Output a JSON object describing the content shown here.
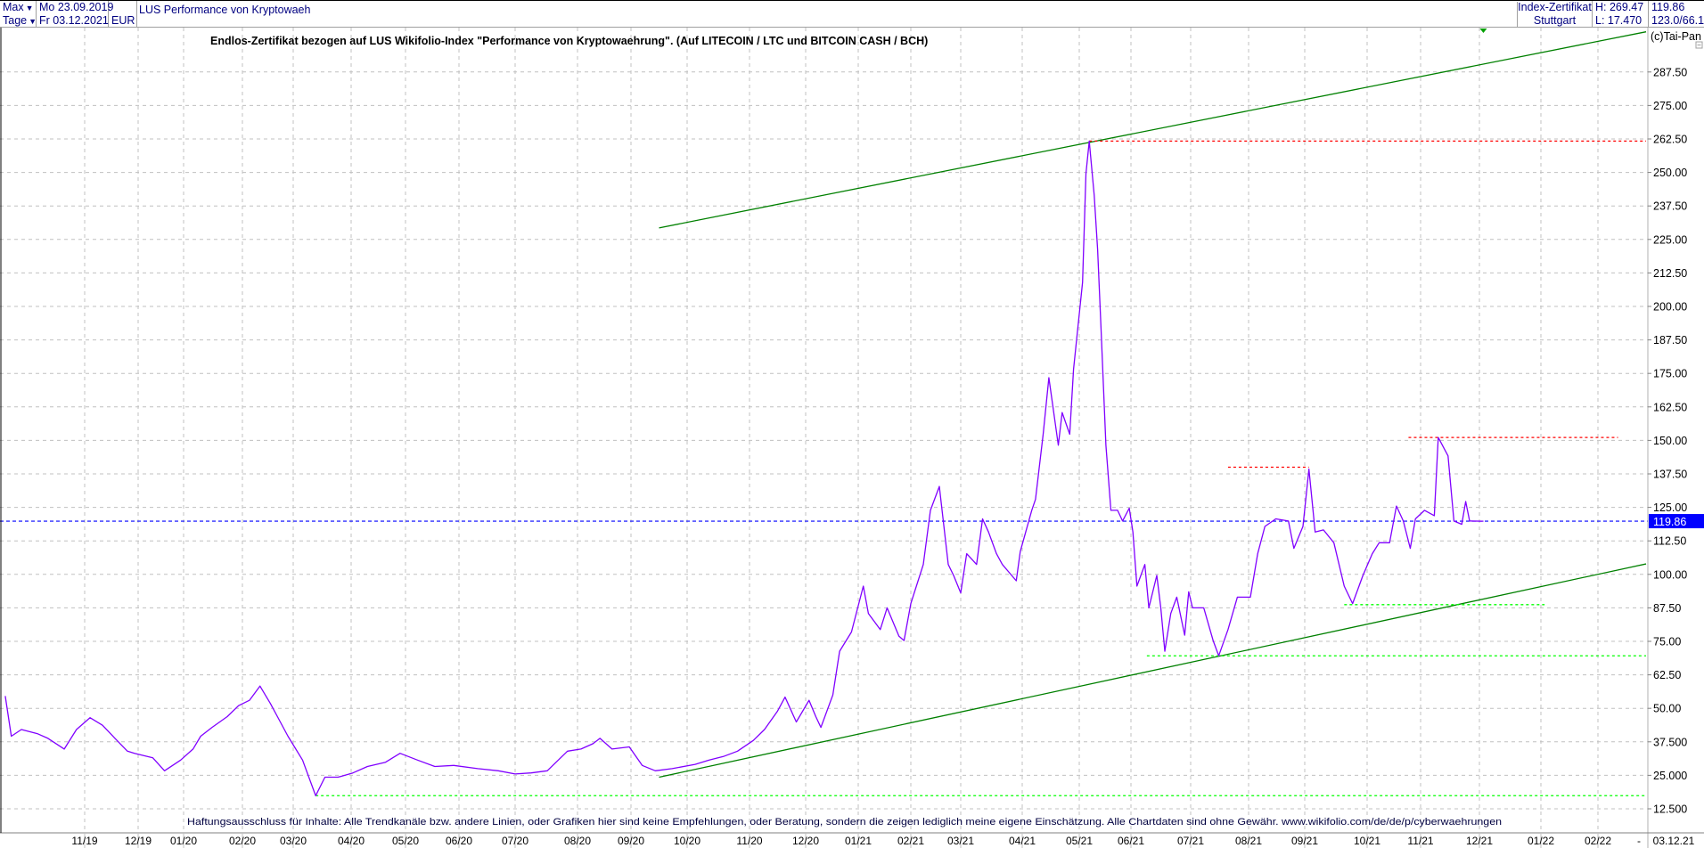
{
  "header": {
    "range_select": "Max",
    "interval_select": "Tage",
    "start_date": "Mo 23.09.2019",
    "end_date": "Fr 03.12.2021",
    "currency": "EUR",
    "instrument_name": "LUS Performance von Kryptowaeh",
    "instrument_type": "Index-Zertifikat",
    "exchange": "Stuttgart",
    "high": "H: 269.47",
    "low": "L: 17.470",
    "last_price": "119.86",
    "extra_value": "123.0/66.1"
  },
  "copyright": "(c)Tai-Pan",
  "colors": {
    "price_line": "#8000ff",
    "trend_channel": "#008000",
    "resistance": "#ff0000",
    "support": "#00ff00",
    "last_price_line": "#0000ff",
    "grid": "#c0c0c0"
  },
  "chart_data": {
    "type": "line",
    "title": "Endlos-Zertifikat bezogen auf LUS Wikifolio-Index \"Performance von Kryptowaehrung\". (Auf LITECOIN / LTC und BITCOIN CASH / BCH)",
    "footnote": "Haftungsausschluss für Inhalte: Alle Trendkanäle bzw. andere Linien, oder Grafiken hier sind keine Empfehlungen, oder Beratung, sondern die zeigen lediglich meine eigene Einschätzung. Alle Chartdaten sind ohne Gewähr.  www.wikifolio.com/de/de/p/cyberwaehrungen",
    "ylim": [
      6,
      303
    ],
    "y_axis_side": "right",
    "grid": true,
    "y_ticks": [
      "12.500",
      "25.000",
      "37.500",
      "50.00",
      "62.50",
      "75.00",
      "87.50",
      "100.00",
      "112.50",
      "125.00",
      "137.50",
      "150.00",
      "162.50",
      "175.00",
      "187.50",
      "200.00",
      "212.50",
      "225.00",
      "237.50",
      "250.00",
      "262.50",
      "275.00",
      "287.50"
    ],
    "y_tick_values": [
      12.5,
      25,
      37.5,
      50,
      62.5,
      75,
      87.5,
      100,
      112.5,
      125,
      137.5,
      150,
      162.5,
      175,
      187.5,
      200,
      212.5,
      225,
      237.5,
      250,
      262.5,
      275,
      287.5
    ],
    "x_ticks": [
      "11/19",
      "12/19",
      "01/20",
      "02/20",
      "03/20",
      "04/20",
      "05/20",
      "06/20",
      "07/20",
      "08/20",
      "09/20",
      "10/20",
      "11/20",
      "12/20",
      "01/21",
      "02/21",
      "03/21",
      "04/21",
      "05/21",
      "06/21",
      "07/21",
      "08/21",
      "09/21",
      "10/21",
      "11/21",
      "12/21",
      "01/22",
      "02/22"
    ],
    "x_tick_dates": [
      "2019-11-01",
      "2019-12-01",
      "2020-01-01",
      "2020-02-01",
      "2020-03-01",
      "2020-04-01",
      "2020-05-01",
      "2020-06-01",
      "2020-07-01",
      "2020-08-01",
      "2020-09-01",
      "2020-10-01",
      "2020-11-01",
      "2020-12-01",
      "2021-01-01",
      "2021-02-01",
      "2021-03-01",
      "2021-04-01",
      "2021-05-01",
      "2021-06-01",
      "2021-07-01",
      "2021-08-01",
      "2021-09-01",
      "2021-10-01",
      "2021-11-01",
      "2021-12-01",
      "2022-01-01",
      "2022-02-01"
    ],
    "x_axis_separator": "-",
    "x_axis_current_date": "03.12.21",
    "last_value": 119.86,
    "last_value_label": "119.86",
    "series": [
      {
        "points": [
          [
            "2019-09-23",
            54.6
          ],
          [
            "2019-09-26",
            39.6
          ],
          [
            "2019-10-01",
            42.1
          ],
          [
            "2019-10-09",
            40.5
          ],
          [
            "2019-10-14",
            38.8
          ],
          [
            "2019-10-22",
            34.8
          ],
          [
            "2019-10-28",
            42.1
          ],
          [
            "2019-11-04",
            46.5
          ],
          [
            "2019-11-11",
            43.7
          ],
          [
            "2019-11-18",
            38.8
          ],
          [
            "2019-11-25",
            34.0
          ],
          [
            "2019-11-29",
            33.2
          ],
          [
            "2019-12-11",
            31.5
          ],
          [
            "2019-12-19",
            26.7
          ],
          [
            "2019-12-30",
            30.7
          ],
          [
            "2020-01-06",
            34.8
          ],
          [
            "2020-01-10",
            39.6
          ],
          [
            "2020-01-16",
            42.9
          ],
          [
            "2020-01-24",
            46.9
          ],
          [
            "2020-01-30",
            51.0
          ],
          [
            "2020-02-05",
            53.0
          ],
          [
            "2020-02-11",
            58.3
          ],
          [
            "2020-02-17",
            51.8
          ],
          [
            "2020-02-21",
            46.9
          ],
          [
            "2020-02-27",
            39.6
          ],
          [
            "2020-03-06",
            30.7
          ],
          [
            "2020-03-13",
            17.4
          ],
          [
            "2020-03-18",
            24.3
          ],
          [
            "2020-03-25",
            24.3
          ],
          [
            "2020-04-02",
            25.9
          ],
          [
            "2020-04-10",
            28.3
          ],
          [
            "2020-04-20",
            29.9
          ],
          [
            "2020-04-28",
            33.2
          ],
          [
            "2020-05-08",
            30.7
          ],
          [
            "2020-05-18",
            28.3
          ],
          [
            "2020-05-29",
            28.7
          ],
          [
            "2020-06-11",
            27.5
          ],
          [
            "2020-06-22",
            26.7
          ],
          [
            "2020-07-01",
            25.5
          ],
          [
            "2020-07-09",
            25.9
          ],
          [
            "2020-07-17",
            26.7
          ],
          [
            "2020-07-27",
            34.0
          ],
          [
            "2020-08-03",
            34.8
          ],
          [
            "2020-08-10",
            36.8
          ],
          [
            "2020-08-14",
            38.8
          ],
          [
            "2020-08-21",
            34.8
          ],
          [
            "2020-08-31",
            35.6
          ],
          [
            "2020-09-07",
            28.7
          ],
          [
            "2020-09-14",
            26.7
          ],
          [
            "2020-09-23",
            27.5
          ],
          [
            "2020-10-05",
            29.1
          ],
          [
            "2020-10-12",
            30.7
          ],
          [
            "2020-10-19",
            32.0
          ],
          [
            "2020-10-26",
            34.0
          ],
          [
            "2020-11-03",
            38.0
          ],
          [
            "2020-11-09",
            42.1
          ],
          [
            "2020-11-16",
            49.0
          ],
          [
            "2020-11-20",
            54.2
          ],
          [
            "2020-11-26",
            44.9
          ],
          [
            "2020-12-03",
            53.0
          ],
          [
            "2020-12-07",
            46.9
          ],
          [
            "2020-12-10",
            42.9
          ],
          [
            "2020-12-17",
            55.0
          ],
          [
            "2020-12-21",
            71.3
          ],
          [
            "2020-12-28",
            78.5
          ],
          [
            "2021-01-04",
            95.6
          ],
          [
            "2021-01-07",
            85.4
          ],
          [
            "2021-01-14",
            79.4
          ],
          [
            "2021-01-18",
            87.5
          ],
          [
            "2021-01-25",
            76.9
          ],
          [
            "2021-01-28",
            75.3
          ],
          [
            "2021-02-01",
            89.1
          ],
          [
            "2021-02-08",
            103.7
          ],
          [
            "2021-02-12",
            123.9
          ],
          [
            "2021-02-17",
            132.8
          ],
          [
            "2021-02-22",
            103.7
          ],
          [
            "2021-02-25",
            99.6
          ],
          [
            "2021-03-01",
            93.1
          ],
          [
            "2021-03-04",
            107.7
          ],
          [
            "2021-03-09",
            103.7
          ],
          [
            "2021-03-12",
            120.7
          ],
          [
            "2021-03-15",
            115.8
          ],
          [
            "2021-03-19",
            107.7
          ],
          [
            "2021-03-22",
            103.7
          ],
          [
            "2021-03-29",
            97.6
          ],
          [
            "2021-03-31",
            108.5
          ],
          [
            "2021-04-06",
            123.9
          ],
          [
            "2021-04-08",
            128.0
          ],
          [
            "2021-04-12",
            152.3
          ],
          [
            "2021-04-15",
            173.4
          ],
          [
            "2021-04-20",
            148.2
          ],
          [
            "2021-04-22",
            160.4
          ],
          [
            "2021-04-26",
            152.3
          ],
          [
            "2021-04-28",
            176.6
          ],
          [
            "2021-05-03",
            209.0
          ],
          [
            "2021-05-05",
            249.5
          ],
          [
            "2021-05-07",
            261.7
          ],
          [
            "2021-05-10",
            241.4
          ],
          [
            "2021-05-12",
            221.2
          ],
          [
            "2021-05-14",
            192.8
          ],
          [
            "2021-05-17",
            148.2
          ],
          [
            "2021-05-20",
            123.9
          ],
          [
            "2021-05-24",
            123.9
          ],
          [
            "2021-05-27",
            119.9
          ],
          [
            "2021-05-31",
            124.7
          ],
          [
            "2021-06-02",
            115.8
          ],
          [
            "2021-06-04",
            95.6
          ],
          [
            "2021-06-08",
            103.7
          ],
          [
            "2021-06-10",
            87.5
          ],
          [
            "2021-06-14",
            99.6
          ],
          [
            "2021-06-16",
            87.5
          ],
          [
            "2021-06-18",
            71.3
          ],
          [
            "2021-06-21",
            85.4
          ],
          [
            "2021-06-24",
            91.5
          ],
          [
            "2021-06-28",
            77.3
          ],
          [
            "2021-06-30",
            93.5
          ],
          [
            "2021-07-02",
            87.5
          ],
          [
            "2021-07-08",
            87.5
          ],
          [
            "2021-07-13",
            75.3
          ],
          [
            "2021-07-16",
            69.6
          ],
          [
            "2021-07-21",
            79.4
          ],
          [
            "2021-07-26",
            91.5
          ],
          [
            "2021-08-02",
            91.5
          ],
          [
            "2021-08-06",
            107.7
          ],
          [
            "2021-08-10",
            117.9
          ],
          [
            "2021-08-16",
            120.7
          ],
          [
            "2021-08-23",
            119.9
          ],
          [
            "2021-08-26",
            109.7
          ],
          [
            "2021-08-31",
            117.9
          ],
          [
            "2021-09-03",
            139.3
          ],
          [
            "2021-09-06",
            115.8
          ],
          [
            "2021-09-10",
            116.6
          ],
          [
            "2021-09-15",
            111.8
          ],
          [
            "2021-09-20",
            95.6
          ],
          [
            "2021-09-24",
            89.1
          ],
          [
            "2021-09-29",
            99.6
          ],
          [
            "2021-10-04",
            107.7
          ],
          [
            "2021-10-08",
            111.8
          ],
          [
            "2021-10-14",
            111.8
          ],
          [
            "2021-10-18",
            125.5
          ],
          [
            "2021-10-22",
            119.9
          ],
          [
            "2021-10-26",
            109.7
          ],
          [
            "2021-10-29",
            120.7
          ],
          [
            "2021-11-03",
            123.9
          ],
          [
            "2021-11-08",
            121.9
          ],
          [
            "2021-11-10",
            151.1
          ],
          [
            "2021-11-15",
            144.2
          ],
          [
            "2021-11-18",
            119.9
          ],
          [
            "2021-11-22",
            118.7
          ],
          [
            "2021-11-24",
            127.2
          ],
          [
            "2021-11-26",
            119.9
          ],
          [
            "2021-12-03",
            119.86
          ]
        ]
      }
    ],
    "trendlines": [
      {
        "kind": "channel-upper",
        "from": [
          "2020-09-16",
          229.3
        ],
        "to": [
          "2022-02-25",
          302.5
        ]
      },
      {
        "kind": "channel-lower",
        "from": [
          "2020-09-16",
          24.3
        ],
        "to": [
          "2022-02-25",
          103.9
        ]
      }
    ],
    "levels": [
      {
        "kind": "resistance",
        "value": 261.7,
        "from": "2021-05-07",
        "to": "2022-02-25"
      },
      {
        "kind": "resistance",
        "value": 140.0,
        "from": "2021-07-21",
        "to": "2021-09-03"
      },
      {
        "kind": "resistance",
        "value": 151.1,
        "from": "2021-10-25",
        "to": "2022-02-11"
      },
      {
        "kind": "support",
        "value": 88.7,
        "from": "2021-09-20",
        "to": "2022-01-03"
      },
      {
        "kind": "support",
        "value": 69.6,
        "from": "2021-06-09",
        "to": "2022-02-25"
      },
      {
        "kind": "support",
        "value": 17.4,
        "from": "2020-03-13",
        "to": "2022-02-25"
      }
    ]
  }
}
